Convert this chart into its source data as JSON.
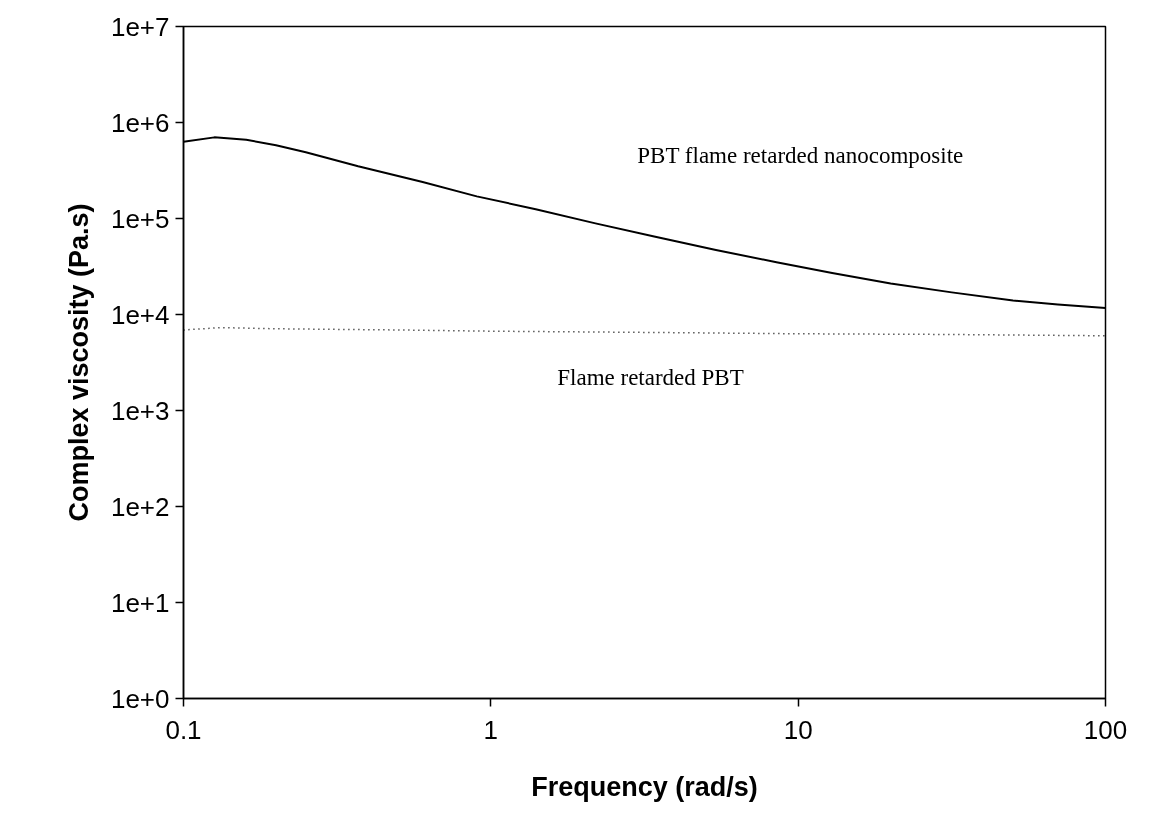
{
  "chart_data": {
    "type": "line",
    "xlabel": "Frequency (rad/s)",
    "ylabel": "Complex viscosity (Pa.s)",
    "log": "xy",
    "xlim": [
      0.1,
      100
    ],
    "xticks": [
      0.1,
      1,
      10,
      100
    ],
    "ylim": [
      1,
      10000000
    ],
    "yticks": [
      {
        "value": 1,
        "label": "1e+0"
      },
      {
        "value": 10,
        "label": "1e+1"
      },
      {
        "value": 100,
        "label": "1e+2"
      },
      {
        "value": 1000,
        "label": "1e+3"
      },
      {
        "value": 10000,
        "label": "1e+4"
      },
      {
        "value": 100000,
        "label": "1e+5"
      },
      {
        "value": 1000000,
        "label": "1e+6"
      },
      {
        "value": 10000000,
        "label": "1e+7"
      }
    ],
    "marker": "none",
    "series": [
      {
        "color": "#000000",
        "line_style": "solid",
        "x": [
          0.1,
          0.126,
          0.16,
          0.2,
          0.25,
          0.37,
          0.6,
          0.9,
          1.4,
          2.19,
          3.4,
          5.4,
          8.5,
          12.9,
          20,
          31.6,
          50,
          70,
          100
        ],
        "values": [
          630000,
          700000,
          660000,
          580000,
          490000,
          350000,
          240000,
          170000,
          125000,
          89000,
          65000,
          47000,
          35000,
          27000,
          21000,
          17000,
          14000,
          12700,
          11700
        ]
      },
      {
        "color": "#000000",
        "line_style": "dotted",
        "x": [
          0.1,
          0.133,
          0.2,
          0.5,
          1,
          3.4,
          10,
          30,
          100
        ],
        "values": [
          6900,
          7300,
          7100,
          6900,
          6700,
          6500,
          6300,
          6200,
          6000
        ]
      }
    ],
    "annotations": [
      "PBT flame retarded nanocomposite",
      "Flame retarded PBT"
    ]
  }
}
